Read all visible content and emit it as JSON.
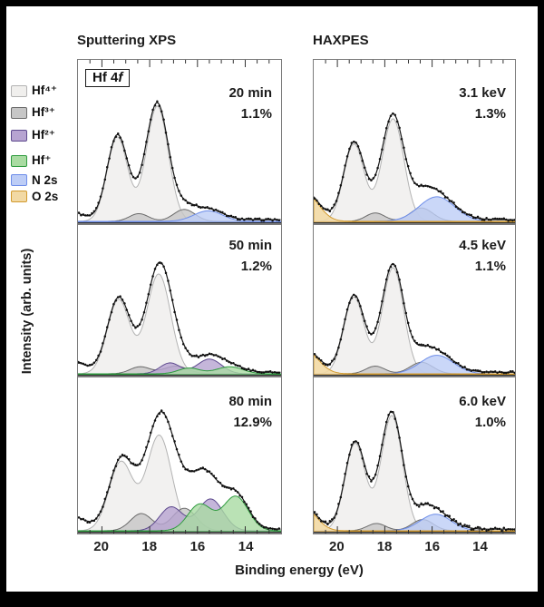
{
  "figure": {
    "columns": [
      {
        "title": "Sputtering XPS"
      },
      {
        "title": "HAXPES"
      }
    ],
    "xlabel": "Binding energy (eV)",
    "ylabel": "Intensity (arb. units)",
    "inset": {
      "prefix": "Hf 4",
      "italic": "f"
    }
  },
  "chart_data": {
    "type": "area",
    "description": "Hf 4f core-level spectra: fitted components (Gaussian peaks: center eV, amp 0-1, sigma eV) under a dotted experimental envelope; x axis reversed",
    "x_axis": {
      "label": "Binding energy (eV)",
      "range": [
        21.0,
        12.5
      ],
      "ticks": [
        20,
        18,
        16,
        14
      ],
      "reversed": true,
      "minor_step": 0.5
    },
    "y_axis": {
      "label": "Intensity (arb. units)",
      "units": "arbitrary"
    },
    "components_legend": [
      {
        "key": "hf4",
        "label": "Hf⁴⁺",
        "fill": "#f0efed",
        "stroke": "#b3b3b3",
        "opacity": 0.85
      },
      {
        "key": "hf3",
        "label": "Hf³⁺",
        "fill": "#c6c6c6",
        "stroke": "#6b6b6b",
        "opacity": 0.8
      },
      {
        "key": "hf2",
        "label": "Hf²⁺",
        "fill": "#b7a4d1",
        "stroke": "#5e4a8e",
        "opacity": 0.8
      },
      {
        "key": "hf1",
        "label": "Hf⁺",
        "fill": "#a9dba2",
        "stroke": "#2f9b3f",
        "opacity": 0.8
      },
      {
        "key": "n2s",
        "label": "N 2s",
        "fill": "#bdcdf6",
        "stroke": "#6d8de9",
        "opacity": 0.8
      },
      {
        "key": "o2s",
        "label": "O 2s",
        "fill": "#f2d9a4",
        "stroke": "#d29a2d",
        "opacity": 0.9
      }
    ],
    "panels": [
      {
        "id": "sputtering-20min",
        "column": "Sputtering XPS",
        "annotation": [
          "20 min",
          "1.1%"
        ],
        "noise": 0.008,
        "seed": 1,
        "components": [
          {
            "key": "hf4",
            "peaks": [
              {
                "center": 19.35,
                "amp": 0.6,
                "sigma": 0.43
              },
              {
                "center": 17.68,
                "amp": 0.82,
                "sigma": 0.46
              }
            ]
          },
          {
            "key": "hf3",
            "peaks": [
              {
                "center": 18.45,
                "amp": 0.055,
                "sigma": 0.4
              },
              {
                "center": 16.55,
                "amp": 0.085,
                "sigma": 0.45
              }
            ]
          },
          {
            "key": "n2s",
            "peaks": [
              {
                "center": 15.55,
                "amp": 0.075,
                "sigma": 0.6
              }
            ]
          }
        ],
        "envelope_extra": [
          {
            "center": 21.5,
            "amp": 0.07,
            "sigma": 0.55
          }
        ]
      },
      {
        "id": "sputtering-50min",
        "column": "Sputtering XPS",
        "annotation": [
          "50 min",
          "1.2%"
        ],
        "noise": 0.008,
        "seed": 2,
        "components": [
          {
            "key": "hf4",
            "peaks": [
              {
                "center": 19.3,
                "amp": 0.58,
                "sigma": 0.47
              },
              {
                "center": 17.62,
                "amp": 0.78,
                "sigma": 0.5
              }
            ]
          },
          {
            "key": "hf3",
            "peaks": [
              {
                "center": 18.4,
                "amp": 0.055,
                "sigma": 0.42
              },
              {
                "center": 16.9,
                "amp": 0.06,
                "sigma": 0.5
              }
            ]
          },
          {
            "key": "hf2",
            "peaks": [
              {
                "center": 17.15,
                "amp": 0.085,
                "sigma": 0.42
              },
              {
                "center": 15.5,
                "amp": 0.115,
                "sigma": 0.5
              }
            ]
          },
          {
            "key": "hf1",
            "peaks": [
              {
                "center": 16.35,
                "amp": 0.045,
                "sigma": 0.45
              },
              {
                "center": 14.65,
                "amp": 0.055,
                "sigma": 0.55
              }
            ]
          }
        ],
        "envelope_extra": [
          {
            "center": 21.5,
            "amp": 0.12,
            "sigma": 0.6
          }
        ]
      },
      {
        "id": "sputtering-80min",
        "column": "Sputtering XPS",
        "annotation": [
          "80 min",
          "12.9%"
        ],
        "noise": 0.01,
        "seed": 3,
        "components": [
          {
            "key": "hf4",
            "peaks": [
              {
                "center": 19.2,
                "amp": 0.52,
                "sigma": 0.5
              },
              {
                "center": 17.6,
                "amp": 0.72,
                "sigma": 0.52
              }
            ]
          },
          {
            "key": "hf3",
            "peaks": [
              {
                "center": 18.35,
                "amp": 0.13,
                "sigma": 0.45
              },
              {
                "center": 16.55,
                "amp": 0.17,
                "sigma": 0.5
              }
            ]
          },
          {
            "key": "hf2",
            "peaks": [
              {
                "center": 17.1,
                "amp": 0.18,
                "sigma": 0.48
              },
              {
                "center": 15.45,
                "amp": 0.24,
                "sigma": 0.52
              }
            ]
          },
          {
            "key": "hf1",
            "peaks": [
              {
                "center": 15.9,
                "amp": 0.2,
                "sigma": 0.5
              },
              {
                "center": 14.4,
                "amp": 0.26,
                "sigma": 0.52
              }
            ]
          }
        ],
        "envelope_extra": [
          {
            "center": 21.3,
            "amp": 0.1,
            "sigma": 0.6
          }
        ]
      },
      {
        "id": "haxpes-3.1kev",
        "column": "HAXPES",
        "annotation": [
          "3.1 keV",
          "1.3%"
        ],
        "noise": 0.009,
        "seed": 4,
        "components": [
          {
            "key": "hf4",
            "peaks": [
              {
                "center": 19.3,
                "amp": 0.55,
                "sigma": 0.43
              },
              {
                "center": 17.65,
                "amp": 0.73,
                "sigma": 0.46
              }
            ]
          },
          {
            "key": "hf3",
            "peaks": [
              {
                "center": 18.4,
                "amp": 0.06,
                "sigma": 0.4
              },
              {
                "center": 16.45,
                "amp": 0.095,
                "sigma": 0.48
              }
            ]
          },
          {
            "key": "n2s",
            "peaks": [
              {
                "center": 15.8,
                "amp": 0.175,
                "sigma": 0.75
              }
            ]
          },
          {
            "key": "o2s",
            "peaks": [
              {
                "center": 21.35,
                "amp": 0.2,
                "sigma": 0.55
              }
            ]
          }
        ],
        "envelope_extra": []
      },
      {
        "id": "haxpes-4.5kev",
        "column": "HAXPES",
        "annotation": [
          "4.5 keV",
          "1.1%"
        ],
        "noise": 0.009,
        "seed": 5,
        "components": [
          {
            "key": "hf4",
            "peaks": [
              {
                "center": 19.3,
                "amp": 0.6,
                "sigma": 0.43
              },
              {
                "center": 17.65,
                "amp": 0.83,
                "sigma": 0.45
              }
            ]
          },
          {
            "key": "hf3",
            "peaks": [
              {
                "center": 18.4,
                "amp": 0.06,
                "sigma": 0.4
              },
              {
                "center": 16.45,
                "amp": 0.09,
                "sigma": 0.48
              }
            ]
          },
          {
            "key": "n2s",
            "peaks": [
              {
                "center": 15.8,
                "amp": 0.145,
                "sigma": 0.7
              }
            ]
          },
          {
            "key": "o2s",
            "peaks": [
              {
                "center": 21.35,
                "amp": 0.18,
                "sigma": 0.55
              }
            ]
          }
        ],
        "envelope_extra": []
      },
      {
        "id": "haxpes-6.0kev",
        "column": "HAXPES",
        "annotation": [
          "6.0 keV",
          "1.0%"
        ],
        "noise": 0.014,
        "seed": 6,
        "components": [
          {
            "key": "hf4",
            "peaks": [
              {
                "center": 19.25,
                "amp": 0.66,
                "sigma": 0.43
              },
              {
                "center": 17.7,
                "amp": 0.87,
                "sigma": 0.45
              }
            ]
          },
          {
            "key": "hf3",
            "peaks": [
              {
                "center": 18.35,
                "amp": 0.055,
                "sigma": 0.4
              },
              {
                "center": 16.4,
                "amp": 0.085,
                "sigma": 0.45
              }
            ]
          },
          {
            "key": "n2s",
            "peaks": [
              {
                "center": 15.85,
                "amp": 0.125,
                "sigma": 0.65
              }
            ]
          },
          {
            "key": "o2s",
            "peaks": [
              {
                "center": 21.35,
                "amp": 0.16,
                "sigma": 0.5
              }
            ]
          }
        ],
        "envelope_extra": []
      }
    ]
  }
}
